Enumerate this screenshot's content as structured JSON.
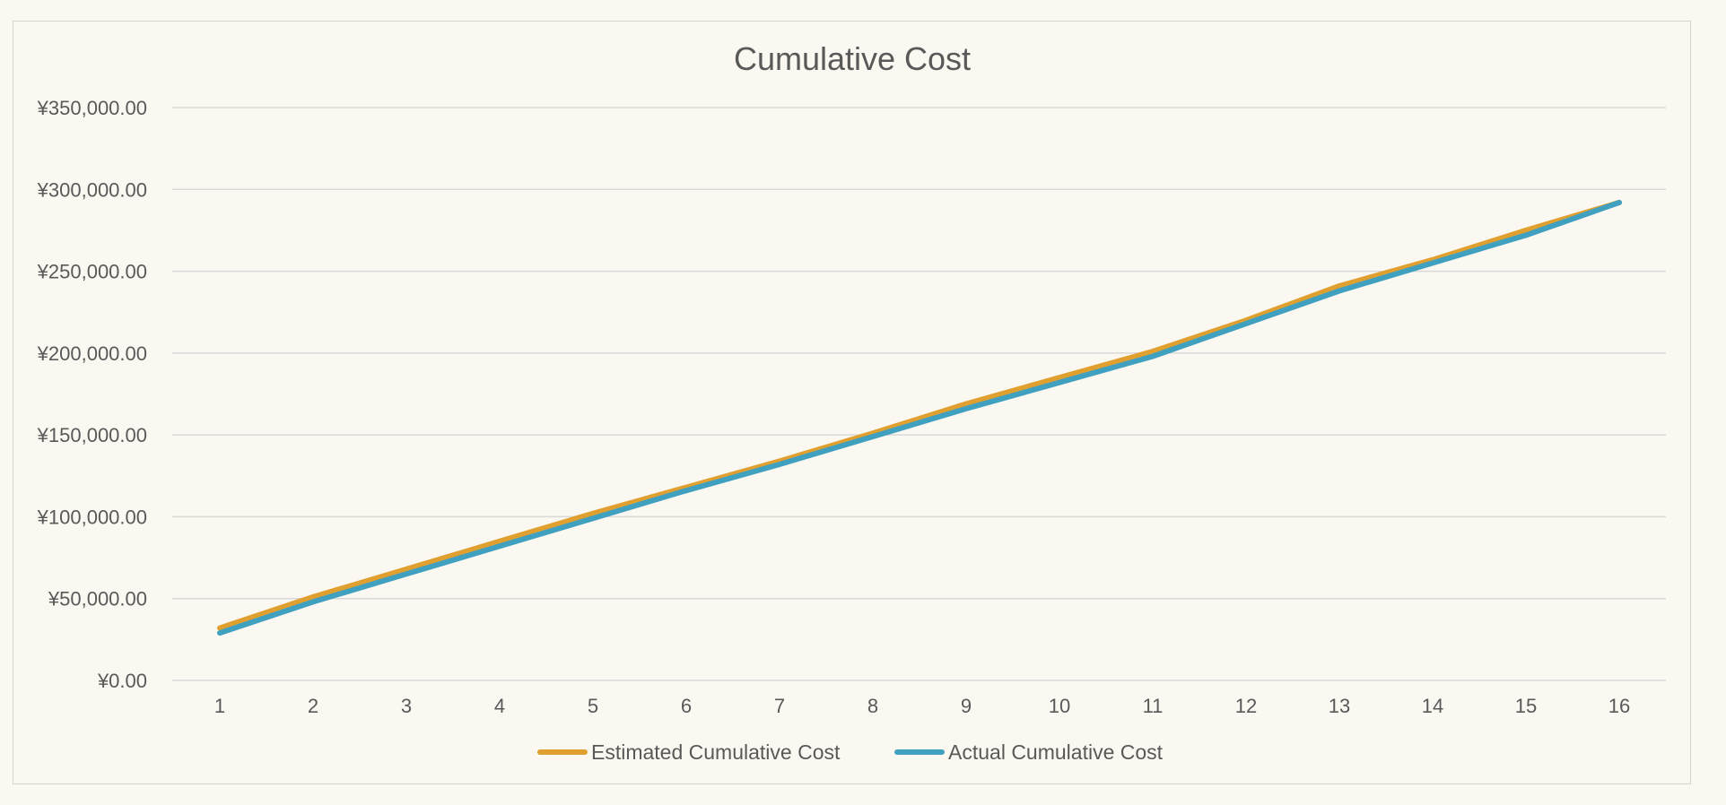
{
  "chart_data": {
    "type": "line",
    "title": "Cumulative Cost",
    "xlabel": "",
    "ylabel": "",
    "categories": [
      "1",
      "2",
      "3",
      "4",
      "5",
      "6",
      "7",
      "8",
      "9",
      "10",
      "11",
      "12",
      "13",
      "14",
      "15",
      "16"
    ],
    "ylim": [
      0,
      350000
    ],
    "yticks": [
      0,
      50000,
      100000,
      150000,
      200000,
      250000,
      300000,
      350000
    ],
    "ytick_labels": [
      "¥0.00",
      "¥50,000.00",
      "¥100,000.00",
      "¥150,000.00",
      "¥200,000.00",
      "¥250,000.00",
      "¥300,000.00",
      "¥350,000.00"
    ],
    "grid": true,
    "legend_position": "bottom",
    "series": [
      {
        "name": "Estimated Cumulative Cost",
        "color": "#e0a030",
        "values": [
          32000,
          51000,
          68000,
          85000,
          102000,
          118000,
          134000,
          151000,
          169000,
          185000,
          201000,
          220000,
          241000,
          257000,
          275000,
          292000
        ]
      },
      {
        "name": "Actual Cumulative Cost",
        "color": "#40a0c0",
        "values": [
          29000,
          48000,
          65000,
          82000,
          99000,
          116000,
          132000,
          149000,
          166000,
          182000,
          198000,
          218000,
          238000,
          255000,
          272000,
          292000
        ]
      }
    ]
  }
}
